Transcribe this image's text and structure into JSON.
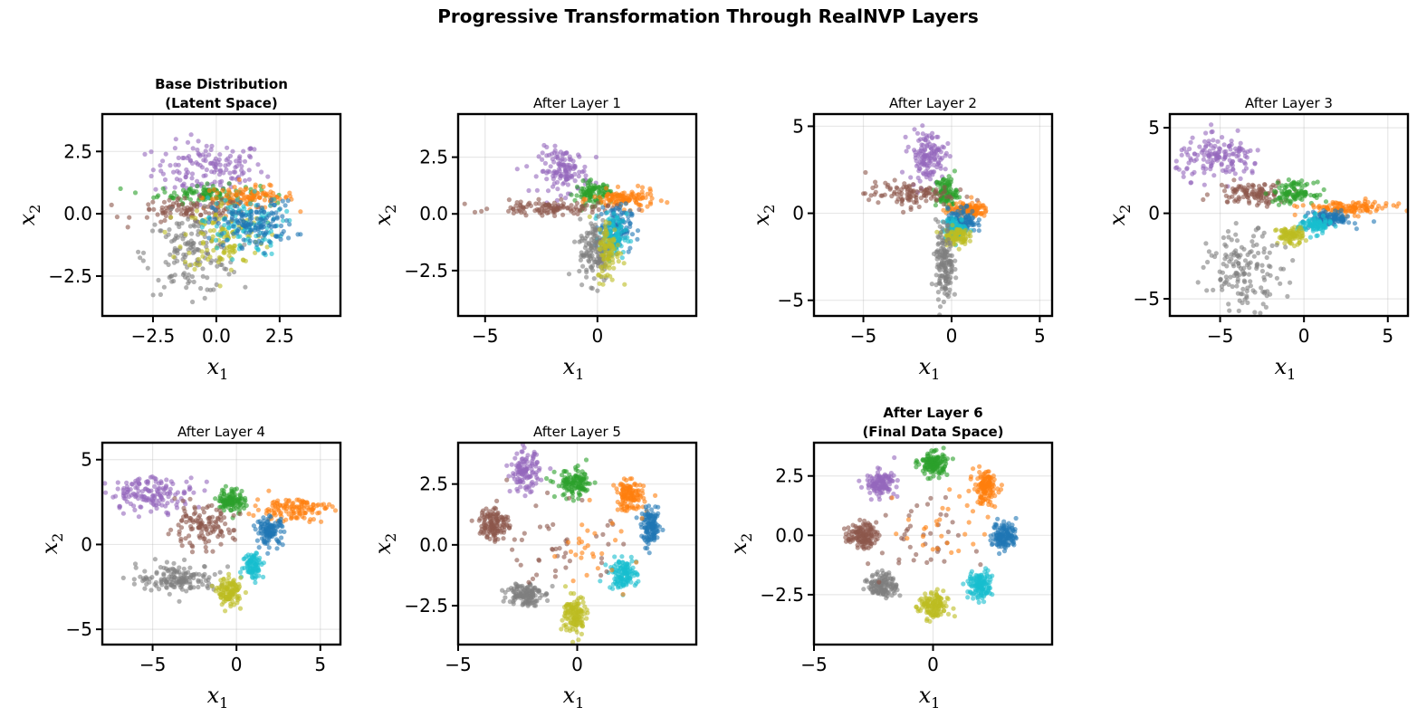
{
  "suptitle": "Progressive Transformation Through RealNVP Layers",
  "colors": {
    "c0": "#1f77b4",
    "c1": "#ff7f0e",
    "c2": "#2ca02c",
    "c3": "#d62728",
    "c4": "#9467bd",
    "c5": "#8c564b",
    "c6": "#e377c2",
    "c7": "#7f7f7f",
    "c8": "#bcbd22",
    "c9": "#17becf"
  },
  "chart_data": [
    {
      "type": "scatter",
      "title": [
        "Base Distribution",
        "(Latent Space)"
      ],
      "title_bold": true,
      "xlabel": "x",
      "xlabel_sub": "1",
      "ylabel": "x",
      "ylabel_sub": "2",
      "xlim": [
        -4.5,
        4.9
      ],
      "ylim": [
        -4.1,
        4.0
      ],
      "xticks": [
        -2.5,
        0.0,
        2.5
      ],
      "xtick_labels": [
        "−2.5",
        "0.0",
        "2.5"
      ],
      "yticks": [
        -2.5,
        0.0,
        2.5
      ],
      "ytick_labels": [
        "−2.5",
        "0.0",
        "2.5"
      ],
      "clusters": [
        {
          "color": "#9467bd",
          "cx": -0.3,
          "cy": 1.8,
          "sx": 1.1,
          "sy": 0.55,
          "n": 150
        },
        {
          "color": "#2ca02c",
          "cx": -0.3,
          "cy": 0.8,
          "sx": 1.0,
          "sy": 0.18,
          "n": 110
        },
        {
          "color": "#ff7f0e",
          "cx": 1.3,
          "cy": 0.65,
          "sx": 0.9,
          "sy": 0.22,
          "n": 110
        },
        {
          "color": "#8c564b",
          "cx": -1.0,
          "cy": 0.1,
          "sx": 1.1,
          "sy": 0.25,
          "n": 100
        },
        {
          "color": "#7f7f7f",
          "cx": -1.0,
          "cy": -1.6,
          "sx": 0.9,
          "sy": 0.8,
          "n": 150
        },
        {
          "color": "#bcbd22",
          "cx": 0.3,
          "cy": -0.9,
          "sx": 0.8,
          "sy": 0.7,
          "n": 110
        },
        {
          "color": "#17becf",
          "cx": 1.0,
          "cy": -0.5,
          "sx": 0.8,
          "sy": 0.6,
          "n": 100
        },
        {
          "color": "#1f77b4",
          "cx": 1.5,
          "cy": -0.4,
          "sx": 0.8,
          "sy": 0.45,
          "n": 140
        }
      ]
    },
    {
      "type": "scatter",
      "title": [
        "After Layer 1"
      ],
      "title_bold": false,
      "xlabel": "x",
      "xlabel_sub": "1",
      "ylabel": "x",
      "ylabel_sub": "2",
      "xlim": [
        -6.2,
        4.4
      ],
      "ylim": [
        -4.5,
        4.4
      ],
      "xticks": [
        -5,
        0
      ],
      "xtick_labels": [
        "−5",
        "0"
      ],
      "yticks": [
        -2.5,
        0.0,
        2.5
      ],
      "ytick_labels": [
        "−2.5",
        "0.0",
        "2.5"
      ],
      "clusters": [
        {
          "color": "#9467bd",
          "cx": -1.5,
          "cy": 1.9,
          "sx": 0.55,
          "sy": 0.5,
          "n": 130
        },
        {
          "color": "#2ca02c",
          "cx": -0.2,
          "cy": 0.9,
          "sx": 0.4,
          "sy": 0.25,
          "n": 100
        },
        {
          "color": "#ff7f0e",
          "cx": 1.2,
          "cy": 0.65,
          "sx": 0.7,
          "sy": 0.2,
          "n": 110
        },
        {
          "color": "#8c564b",
          "cx": -2.0,
          "cy": 0.25,
          "sx": 1.3,
          "sy": 0.15,
          "n": 110
        },
        {
          "color": "#1f77b4",
          "cx": 0.8,
          "cy": -0.6,
          "sx": 0.35,
          "sy": 0.5,
          "n": 120
        },
        {
          "color": "#17becf",
          "cx": 0.7,
          "cy": -1.0,
          "sx": 0.3,
          "sy": 0.5,
          "n": 90
        },
        {
          "color": "#7f7f7f",
          "cx": -0.1,
          "cy": -1.6,
          "sx": 0.35,
          "sy": 0.7,
          "n": 140
        },
        {
          "color": "#bcbd22",
          "cx": 0.5,
          "cy": -1.6,
          "sx": 0.25,
          "sy": 0.7,
          "n": 90
        }
      ]
    },
    {
      "type": "scatter",
      "title": [
        "After Layer 2"
      ],
      "title_bold": false,
      "xlabel": "x",
      "xlabel_sub": "1",
      "ylabel": "x",
      "ylabel_sub": "2",
      "xlim": [
        -7.8,
        5.7
      ],
      "ylim": [
        -5.9,
        5.7
      ],
      "xticks": [
        -5,
        0,
        5
      ],
      "xtick_labels": [
        "−5",
        "0",
        "5"
      ],
      "yticks": [
        -5,
        0,
        5
      ],
      "ytick_labels": [
        "−5",
        "0",
        "5"
      ],
      "clusters": [
        {
          "color": "#9467bd",
          "cx": -1.4,
          "cy": 3.3,
          "sx": 0.5,
          "sy": 0.7,
          "n": 140
        },
        {
          "color": "#2ca02c",
          "cx": -0.3,
          "cy": 1.2,
          "sx": 0.3,
          "sy": 0.45,
          "n": 100
        },
        {
          "color": "#8c564b",
          "cx": -2.5,
          "cy": 1.1,
          "sx": 1.2,
          "sy": 0.35,
          "n": 110
        },
        {
          "color": "#ff7f0e",
          "cx": 0.9,
          "cy": 0.2,
          "sx": 0.6,
          "sy": 0.2,
          "n": 110
        },
        {
          "color": "#1f77b4",
          "cx": 0.6,
          "cy": -0.4,
          "sx": 0.4,
          "sy": 0.35,
          "n": 110
        },
        {
          "color": "#17becf",
          "cx": 0.2,
          "cy": -0.9,
          "sx": 0.35,
          "sy": 0.3,
          "n": 90
        },
        {
          "color": "#bcbd22",
          "cx": 0.2,
          "cy": -1.3,
          "sx": 0.35,
          "sy": 0.25,
          "n": 90
        },
        {
          "color": "#7f7f7f",
          "cx": -0.4,
          "cy": -3.0,
          "sx": 0.25,
          "sy": 1.2,
          "n": 150
        }
      ]
    },
    {
      "type": "scatter",
      "title": [
        "After Layer 3"
      ],
      "title_bold": false,
      "xlabel": "x",
      "xlabel_sub": "1",
      "ylabel": "x",
      "ylabel_sub": "2",
      "xlim": [
        -8.0,
        6.2
      ],
      "ylim": [
        -6.0,
        5.8
      ],
      "xticks": [
        -5,
        0,
        5
      ],
      "xtick_labels": [
        "−5",
        "0",
        "5"
      ],
      "yticks": [
        -5,
        0,
        5
      ],
      "ytick_labels": [
        "−5",
        "0",
        "5"
      ],
      "clusters": [
        {
          "color": "#9467bd",
          "cx": -5.0,
          "cy": 3.2,
          "sx": 1.3,
          "sy": 0.6,
          "n": 150
        },
        {
          "color": "#8c564b",
          "cx": -3.0,
          "cy": 1.2,
          "sx": 1.1,
          "sy": 0.35,
          "n": 110
        },
        {
          "color": "#2ca02c",
          "cx": -0.6,
          "cy": 1.2,
          "sx": 0.6,
          "sy": 0.3,
          "n": 100
        },
        {
          "color": "#ff7f0e",
          "cx": 2.6,
          "cy": 0.3,
          "sx": 1.3,
          "sy": 0.2,
          "n": 120
        },
        {
          "color": "#1f77b4",
          "cx": 1.6,
          "cy": -0.3,
          "sx": 0.6,
          "sy": 0.2,
          "n": 110
        },
        {
          "color": "#17becf",
          "cx": 0.6,
          "cy": -0.7,
          "sx": 0.5,
          "sy": 0.25,
          "n": 90
        },
        {
          "color": "#bcbd22",
          "cx": -0.8,
          "cy": -1.3,
          "sx": 0.4,
          "sy": 0.25,
          "n": 90
        },
        {
          "color": "#7f7f7f",
          "cx": -3.5,
          "cy": -3.3,
          "sx": 1.1,
          "sy": 1.1,
          "n": 150
        }
      ]
    },
    {
      "type": "scatter",
      "title": [
        "After Layer 4"
      ],
      "title_bold": false,
      "xlabel": "x",
      "xlabel_sub": "1",
      "ylabel": "x",
      "ylabel_sub": "2",
      "xlim": [
        -8.0,
        6.2
      ],
      "ylim": [
        -5.9,
        6.0
      ],
      "xticks": [
        -5,
        0,
        5
      ],
      "xtick_labels": [
        "−5",
        "0",
        "5"
      ],
      "yticks": [
        -5,
        0,
        5
      ],
      "ytick_labels": [
        "−5",
        "0",
        "5"
      ],
      "clusters": [
        {
          "color": "#9467bd",
          "cx": -5.0,
          "cy": 3.0,
          "sx": 1.3,
          "sy": 0.5,
          "n": 150
        },
        {
          "color": "#2ca02c",
          "cx": -0.3,
          "cy": 2.6,
          "sx": 0.4,
          "sy": 0.35,
          "n": 110
        },
        {
          "color": "#ff7f0e",
          "cx": 3.3,
          "cy": 2.1,
          "sx": 1.1,
          "sy": 0.35,
          "n": 120
        },
        {
          "color": "#8c564b",
          "cx": -2.2,
          "cy": 1.0,
          "sx": 1.0,
          "sy": 0.6,
          "n": 120
        },
        {
          "color": "#1f77b4",
          "cx": 2.0,
          "cy": 0.8,
          "sx": 0.4,
          "sy": 0.4,
          "n": 110
        },
        {
          "color": "#17becf",
          "cx": 1.0,
          "cy": -1.2,
          "sx": 0.3,
          "sy": 0.4,
          "n": 90
        },
        {
          "color": "#7f7f7f",
          "cx": -3.5,
          "cy": -2.0,
          "sx": 1.2,
          "sy": 0.4,
          "n": 150
        },
        {
          "color": "#bcbd22",
          "cx": -0.4,
          "cy": -2.8,
          "sx": 0.35,
          "sy": 0.4,
          "n": 120
        }
      ]
    },
    {
      "type": "scatter",
      "title": [
        "After Layer 5"
      ],
      "title_bold": false,
      "xlabel": "x",
      "xlabel_sub": "1",
      "ylabel": "x",
      "ylabel_sub": "2",
      "xlim": [
        -5.0,
        5.0
      ],
      "ylim": [
        -4.1,
        4.2
      ],
      "xticks": [
        -5,
        0
      ],
      "xtick_labels": [
        "−5",
        "0"
      ],
      "yticks": [
        -2.5,
        0.0,
        2.5
      ],
      "ytick_labels": [
        "−2.5",
        "0.0",
        "2.5"
      ],
      "clusters": [
        {
          "color": "#9467bd",
          "cx": -2.2,
          "cy": 3.0,
          "sx": 0.3,
          "sy": 0.4,
          "n": 120
        },
        {
          "color": "#2ca02c",
          "cx": -0.1,
          "cy": 2.5,
          "sx": 0.4,
          "sy": 0.3,
          "n": 120
        },
        {
          "color": "#ff7f0e",
          "cx": 2.2,
          "cy": 2.0,
          "sx": 0.3,
          "sy": 0.3,
          "n": 120
        },
        {
          "color": "#8c564b",
          "cx": -3.5,
          "cy": 0.9,
          "sx": 0.3,
          "sy": 0.35,
          "n": 130
        },
        {
          "color": "#1f77b4",
          "cx": 3.1,
          "cy": 0.7,
          "sx": 0.2,
          "sy": 0.35,
          "n": 120
        },
        {
          "color": "#17becf",
          "cx": 1.9,
          "cy": -1.2,
          "sx": 0.3,
          "sy": 0.3,
          "n": 120
        },
        {
          "color": "#7f7f7f",
          "cx": -2.2,
          "cy": -2.0,
          "sx": 0.35,
          "sy": 0.25,
          "n": 130
        },
        {
          "color": "#bcbd22",
          "cx": -0.1,
          "cy": -2.9,
          "sx": 0.25,
          "sy": 0.4,
          "n": 130
        },
        {
          "color": "#8c564b",
          "cx": -0.6,
          "cy": -0.2,
          "sx": 1.0,
          "sy": 0.9,
          "n": 45
        },
        {
          "color": "#ff7f0e",
          "cx": 0.6,
          "cy": 0.2,
          "sx": 0.9,
          "sy": 0.8,
          "n": 30
        }
      ]
    },
    {
      "type": "scatter",
      "title": [
        "After Layer 6",
        "(Final Data Space)"
      ],
      "title_bold": true,
      "xlabel": "x",
      "xlabel_sub": "1",
      "ylabel": "x",
      "ylabel_sub": "2",
      "xlim": [
        -5.0,
        5.0
      ],
      "ylim": [
        -4.6,
        3.9
      ],
      "xticks": [
        -5,
        0
      ],
      "xtick_labels": [
        "−5",
        "0"
      ],
      "yticks": [
        -2.5,
        0.0,
        2.5
      ],
      "ytick_labels": [
        "−2.5",
        "0.0",
        "2.5"
      ],
      "clusters": [
        {
          "color": "#2ca02c",
          "cx": 0.0,
          "cy": 3.0,
          "sx": 0.3,
          "sy": 0.25,
          "n": 130
        },
        {
          "color": "#9467bd",
          "cx": -2.2,
          "cy": 2.2,
          "sx": 0.3,
          "sy": 0.25,
          "n": 120
        },
        {
          "color": "#ff7f0e",
          "cx": 2.2,
          "cy": 2.0,
          "sx": 0.25,
          "sy": 0.35,
          "n": 130
        },
        {
          "color": "#8c564b",
          "cx": -3.0,
          "cy": 0.0,
          "sx": 0.3,
          "sy": 0.25,
          "n": 130
        },
        {
          "color": "#1f77b4",
          "cx": 3.0,
          "cy": 0.0,
          "sx": 0.25,
          "sy": 0.3,
          "n": 130
        },
        {
          "color": "#7f7f7f",
          "cx": -2.1,
          "cy": -2.1,
          "sx": 0.3,
          "sy": 0.25,
          "n": 130
        },
        {
          "color": "#17becf",
          "cx": 2.0,
          "cy": -2.1,
          "sx": 0.25,
          "sy": 0.3,
          "n": 130
        },
        {
          "color": "#bcbd22",
          "cx": 0.0,
          "cy": -3.0,
          "sx": 0.3,
          "sy": 0.3,
          "n": 130
        },
        {
          "color": "#8c564b",
          "cx": -0.8,
          "cy": -0.3,
          "sx": 1.0,
          "sy": 0.9,
          "n": 40
        },
        {
          "color": "#ff7f0e",
          "cx": 0.6,
          "cy": 0.3,
          "sx": 0.9,
          "sy": 0.8,
          "n": 30
        }
      ]
    }
  ]
}
